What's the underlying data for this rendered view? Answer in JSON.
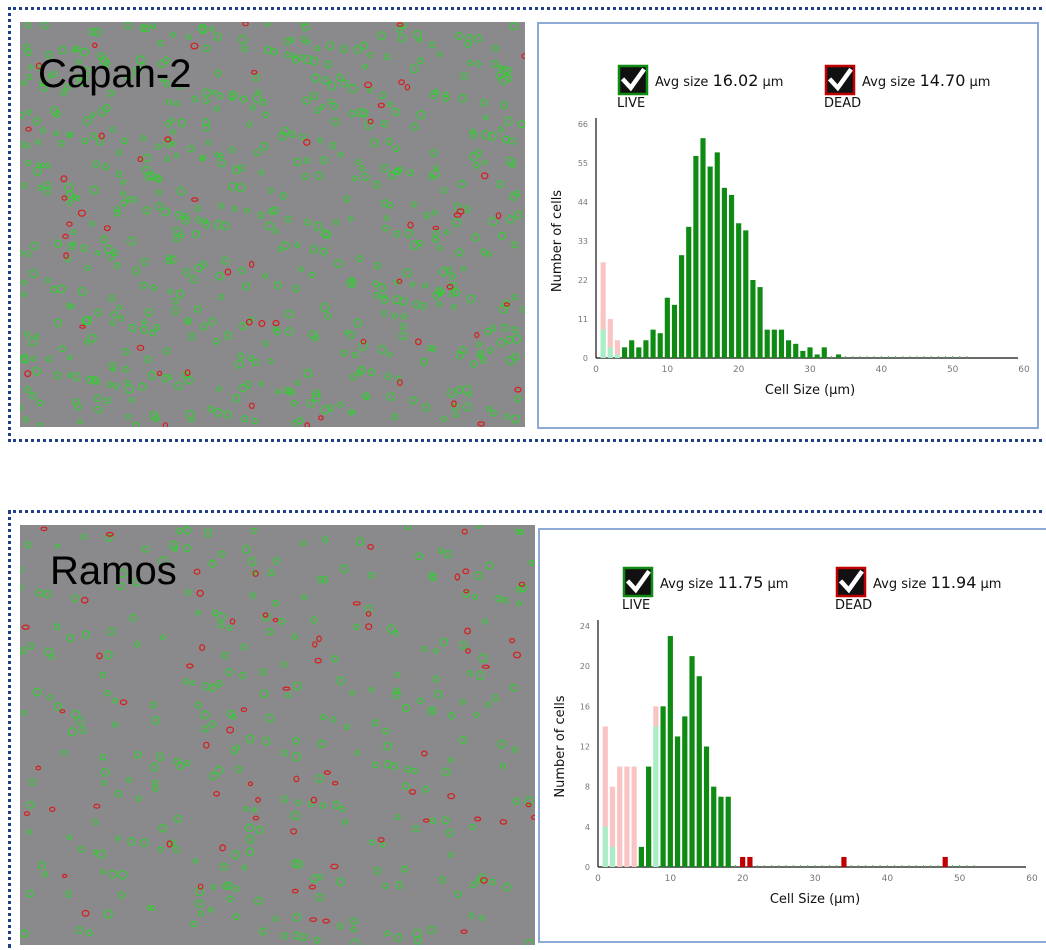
{
  "colors": {
    "live": "#0f8a12",
    "live_light": "#a8efc7",
    "dead": "#c00000",
    "dead_light": "#f9c4c4",
    "frame": "#1f3f8c",
    "chart_border": "#8eaad6"
  },
  "icons": [
    "live-checkbox-icon",
    "dead-checkbox-icon"
  ],
  "panels": [
    {
      "cell_line": "Capan-2"
    },
    {
      "cell_line": "Ramos"
    }
  ],
  "chart_data": [
    {
      "type": "bar",
      "legend": [
        {
          "name": "LIVE",
          "avg_label": "Avg size",
          "avg_value": "16.02",
          "unit": "µm"
        },
        {
          "name": "DEAD",
          "avg_label": "Avg size",
          "avg_value": "14.70",
          "unit": "µm"
        }
      ],
      "xlabel": "Cell Size (µm)",
      "ylabel": "Number of cells",
      "xlim": [
        0,
        60
      ],
      "ylim": [
        0,
        66
      ],
      "xticks": [
        0,
        10,
        20,
        30,
        40,
        50,
        60
      ],
      "yticks": [
        0,
        11,
        22,
        33,
        44,
        55,
        66
      ],
      "series": [
        {
          "name": "LIVE",
          "x": [
            1,
            2,
            3,
            4,
            5,
            6,
            7,
            8,
            9,
            10,
            11,
            12,
            13,
            14,
            15,
            16,
            17,
            18,
            19,
            20,
            21,
            22,
            23,
            24,
            25,
            26,
            27,
            28,
            29,
            30,
            31,
            32,
            33,
            34
          ],
          "values": [
            8,
            3,
            1,
            3,
            5,
            3,
            5,
            8,
            7,
            17,
            15,
            29,
            37,
            57,
            62,
            54,
            58,
            48,
            46,
            38,
            36,
            22,
            20,
            8,
            8,
            8,
            5,
            4,
            2,
            3,
            1,
            3,
            0,
            1
          ]
        },
        {
          "name": "DEAD",
          "x": [
            1,
            2,
            3,
            4,
            5
          ],
          "values": [
            27,
            11,
            5,
            3,
            2
          ]
        }
      ]
    },
    {
      "type": "bar",
      "legend": [
        {
          "name": "LIVE",
          "avg_label": "Avg size",
          "avg_value": "11.75",
          "unit": "µm"
        },
        {
          "name": "DEAD",
          "avg_label": "Avg size",
          "avg_value": "11.94",
          "unit": "µm"
        }
      ],
      "xlabel": "Cell Size (µm)",
      "ylabel": "Number of cells",
      "xlim": [
        0,
        60
      ],
      "ylim": [
        0,
        24
      ],
      "xticks": [
        0,
        10,
        20,
        30,
        40,
        50,
        60
      ],
      "yticks": [
        0,
        4,
        8,
        12,
        16,
        20,
        24
      ],
      "series": [
        {
          "name": "LIVE",
          "x": [
            1,
            2,
            3,
            4,
            5,
            6,
            7,
            8,
            9,
            10,
            11,
            12,
            13,
            14,
            15,
            16,
            17,
            18
          ],
          "values": [
            4,
            2,
            0,
            0,
            0,
            2,
            10,
            14,
            16,
            23,
            13,
            15,
            21,
            19,
            12,
            8,
            7,
            7
          ]
        },
        {
          "name": "DEAD",
          "x": [
            1,
            2,
            3,
            4,
            5,
            6,
            7,
            8,
            20,
            21,
            34,
            48
          ],
          "values": [
            14,
            8,
            10,
            10,
            10,
            2,
            3,
            16,
            1,
            1,
            1,
            1
          ]
        }
      ]
    }
  ]
}
